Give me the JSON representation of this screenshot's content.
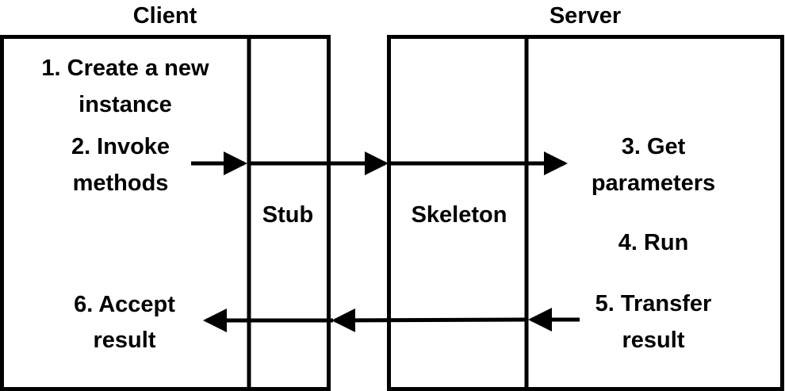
{
  "client": {
    "heading": "Client",
    "proxy_label": "Stub",
    "steps": {
      "create": [
        "1. Create a new",
        "instance"
      ],
      "invoke": [
        "2. Invoke",
        "methods"
      ],
      "accept": [
        "6. Accept",
        "result"
      ]
    }
  },
  "server": {
    "heading": "Server",
    "proxy_label": "Skeleton",
    "steps": {
      "get_params": [
        "3. Get",
        "parameters"
      ],
      "run": [
        "4. Run"
      ],
      "transfer": [
        "5. Transfer",
        "result"
      ]
    }
  },
  "colors": {
    "line": "#000000",
    "background": "#ffffff"
  }
}
